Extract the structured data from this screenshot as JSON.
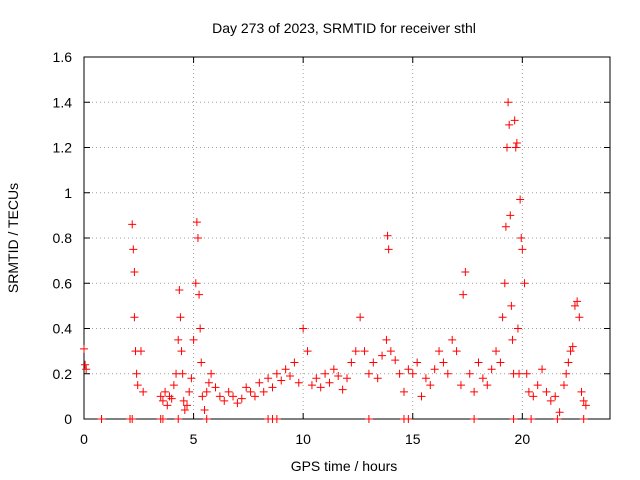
{
  "chart_data": {
    "type": "scatter",
    "title": "Day 273 of 2023, SRMTID for receiver sthl",
    "xlabel": "GPS time / hours",
    "ylabel": "SRMTID / TECUs",
    "xlim": [
      0,
      24
    ],
    "ylim": [
      0,
      1.6
    ],
    "xticks": [
      0,
      5,
      10,
      15,
      20
    ],
    "xtick_labels": [
      "0",
      "5",
      "10",
      "15",
      "20"
    ],
    "yticks": [
      0,
      0.2,
      0.4,
      0.6,
      0.8,
      1.0,
      1.2,
      1.4,
      1.6
    ],
    "ytick_labels": [
      "0",
      "0.2",
      "0.4",
      "0.6",
      "0.8",
      "1",
      "1.2",
      "1.4",
      "1.6"
    ],
    "grid": true,
    "marker": "+",
    "series_color": "#ff0000",
    "series": [
      {
        "name": "SRMTID",
        "x": [
          0.0,
          0.05,
          0.1,
          0.8,
          2.1,
          2.2,
          2.25,
          2.3,
          2.3,
          2.35,
          2.4,
          2.45,
          2.6,
          2.7,
          3.5,
          3.6,
          3.7,
          3.8,
          3.9,
          4.0,
          4.1,
          4.2,
          4.3,
          4.35,
          4.4,
          4.45,
          4.5,
          4.55,
          4.6,
          4.7,
          4.8,
          4.9,
          5.0,
          5.1,
          5.15,
          5.2,
          5.25,
          5.3,
          5.35,
          5.4,
          5.5,
          5.6,
          5.7,
          5.8,
          6.0,
          6.2,
          6.4,
          6.6,
          6.8,
          7.0,
          7.2,
          7.4,
          7.6,
          7.8,
          8.0,
          8.2,
          8.4,
          8.6,
          8.8,
          9.0,
          9.2,
          9.4,
          9.6,
          9.8,
          10.0,
          10.2,
          10.4,
          10.6,
          10.8,
          11.0,
          11.2,
          11.4,
          11.6,
          11.8,
          12.0,
          12.2,
          12.4,
          12.6,
          12.8,
          13.0,
          13.2,
          13.4,
          13.6,
          13.8,
          13.85,
          13.9,
          14.0,
          14.2,
          14.4,
          14.6,
          14.8,
          15.0,
          15.2,
          15.4,
          15.6,
          15.8,
          16.0,
          16.2,
          16.4,
          16.6,
          16.8,
          17.0,
          17.2,
          17.3,
          17.4,
          17.6,
          17.8,
          18.0,
          18.2,
          18.4,
          18.6,
          18.8,
          19.0,
          19.1,
          19.2,
          19.25,
          19.3,
          19.35,
          19.4,
          19.45,
          19.5,
          19.55,
          19.6,
          19.65,
          19.7,
          19.75,
          19.8,
          19.85,
          19.9,
          19.95,
          20.0,
          20.1,
          20.2,
          20.3,
          20.5,
          20.7,
          20.9,
          21.1,
          21.3,
          21.5,
          21.7,
          21.9,
          22.0,
          22.1,
          22.2,
          22.3,
          22.4,
          22.5,
          22.6,
          22.7,
          22.8,
          22.9
        ],
        "y": [
          0.31,
          0.24,
          0.22,
          0.0,
          0.0,
          0.86,
          0.75,
          0.65,
          0.45,
          0.3,
          0.2,
          0.15,
          0.3,
          0.12,
          0.1,
          0.08,
          0.12,
          0.06,
          0.1,
          0.09,
          0.15,
          0.2,
          0.35,
          0.57,
          0.45,
          0.3,
          0.2,
          0.08,
          0.04,
          0.06,
          0.12,
          0.18,
          0.35,
          0.6,
          0.87,
          0.8,
          0.55,
          0.4,
          0.25,
          0.1,
          0.04,
          0.12,
          0.16,
          0.2,
          0.14,
          0.1,
          0.08,
          0.12,
          0.1,
          0.07,
          0.09,
          0.14,
          0.12,
          0.1,
          0.16,
          0.12,
          0.18,
          0.14,
          0.2,
          0.17,
          0.22,
          0.19,
          0.25,
          0.16,
          0.4,
          0.3,
          0.15,
          0.18,
          0.14,
          0.2,
          0.16,
          0.22,
          0.19,
          0.13,
          0.18,
          0.25,
          0.3,
          0.45,
          0.3,
          0.2,
          0.25,
          0.18,
          0.28,
          0.35,
          0.81,
          0.75,
          0.3,
          0.26,
          0.2,
          0.12,
          0.22,
          0.2,
          0.25,
          0.1,
          0.18,
          0.15,
          0.22,
          0.3,
          0.25,
          0.2,
          0.35,
          0.3,
          0.15,
          0.55,
          0.65,
          0.2,
          0.12,
          0.25,
          0.18,
          0.15,
          0.22,
          0.3,
          0.25,
          0.45,
          0.6,
          0.85,
          1.2,
          1.4,
          1.3,
          0.9,
          0.5,
          0.35,
          0.2,
          1.32,
          1.2,
          1.22,
          0.4,
          0.2,
          0.97,
          0.8,
          0.75,
          0.6,
          0.2,
          0.12,
          0.1,
          0.15,
          0.22,
          0.12,
          0.08,
          0.1,
          0.03,
          0.15,
          0.2,
          0.25,
          0.3,
          0.32,
          0.5,
          0.52,
          0.45,
          0.12,
          0.08,
          0.06
        ]
      }
    ],
    "zero_markers_x": [
      0.8,
      2.1,
      2.2,
      3.5,
      3.6,
      4.3,
      5.6,
      8.4,
      8.6,
      8.8,
      13.0,
      14.6,
      14.8,
      17.8,
      19.6,
      20.4,
      21.6,
      22.8
    ]
  }
}
